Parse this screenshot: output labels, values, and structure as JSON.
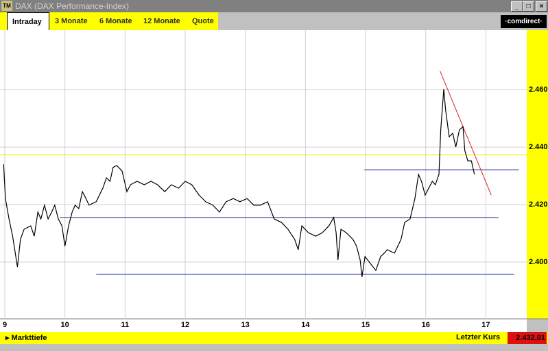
{
  "window": {
    "title": "DAX (DAX Performance-Index)"
  },
  "tabs": [
    "Intraday",
    "3 Monate",
    "6 Monate",
    "12 Monate",
    "Quote"
  ],
  "logo": "·comdirect·",
  "chart_data": {
    "type": "line",
    "x": [
      8.98,
      9.01,
      9.07,
      9.13,
      9.21,
      9.26,
      9.32,
      9.43,
      9.49,
      9.55,
      9.6,
      9.66,
      9.72,
      9.78,
      9.83,
      9.89,
      9.95,
      10.0,
      10.06,
      10.12,
      10.17,
      10.23,
      10.29,
      10.35,
      10.4,
      10.52,
      10.63,
      10.69,
      10.75,
      10.8,
      10.86,
      10.95,
      11.03,
      11.09,
      11.2,
      11.32,
      11.43,
      11.54,
      11.66,
      11.77,
      11.89,
      12.0,
      12.11,
      12.23,
      12.34,
      12.46,
      12.57,
      12.68,
      12.8,
      12.91,
      13.03,
      13.14,
      13.25,
      13.37,
      13.48,
      13.6,
      13.71,
      13.82,
      13.88,
      13.94,
      14.05,
      14.17,
      14.28,
      14.39,
      14.47,
      14.51,
      14.54,
      14.59,
      14.68,
      14.79,
      14.85,
      14.91,
      14.94,
      14.99,
      15.08,
      15.17,
      15.25,
      15.31,
      15.36,
      15.48,
      15.59,
      15.65,
      15.74,
      15.82,
      15.88,
      15.93,
      15.99,
      16.05,
      16.11,
      16.16,
      16.22,
      16.25,
      16.3,
      16.33,
      16.39,
      16.45,
      16.5,
      16.56,
      16.62,
      16.65,
      16.7,
      16.76,
      16.81
    ],
    "series": [
      {
        "color": "#000000",
        "values": [
          2434.0,
          2422.1,
          2415,
          2409,
          2398.3,
          2407.9,
          2411.4,
          2412.6,
          2409,
          2417.4,
          2415,
          2419.8,
          2415,
          2417.4,
          2419.8,
          2415,
          2412.6,
          2405.5,
          2412.6,
          2417.4,
          2419.8,
          2418.6,
          2424.5,
          2422.1,
          2419.8,
          2421,
          2425.7,
          2429.3,
          2428.1,
          2432.9,
          2433.6,
          2431.7,
          2424.5,
          2426.9,
          2428.1,
          2426.9,
          2428.1,
          2426.9,
          2424.5,
          2426.9,
          2425.7,
          2428.1,
          2426.9,
          2423.3,
          2421,
          2419.8,
          2417.4,
          2421,
          2422.1,
          2421,
          2422.1,
          2419.8,
          2419.8,
          2421,
          2415,
          2413.8,
          2411.4,
          2407.9,
          2404.3,
          2412.6,
          2410.2,
          2409,
          2410.2,
          2412.6,
          2415.5,
          2410.2,
          2400.7,
          2411.4,
          2410.2,
          2407.9,
          2405.5,
          2400.7,
          2394.8,
          2401.9,
          2399.5,
          2397.1,
          2401.9,
          2403.1,
          2404.3,
          2403.1,
          2407.9,
          2413.8,
          2415,
          2422.1,
          2430.5,
          2428.1,
          2423.3,
          2425.7,
          2428.1,
          2426.9,
          2430.5,
          2446,
          2460.2,
          2453.1,
          2443.6,
          2444.8,
          2440,
          2446,
          2447.1,
          2438.8,
          2435.2,
          2435.2,
          2430.5
        ]
      }
    ],
    "xlim": [
      8.92,
      17.68
    ],
    "xticks": [
      9,
      10,
      11,
      12,
      13,
      14,
      15,
      16,
      17
    ],
    "ylim": [
      2380,
      2480
    ],
    "yticks": [
      {
        "value": 2400,
        "label": "2.400"
      },
      {
        "value": 2420,
        "label": "2.420"
      },
      {
        "value": 2440,
        "label": "2.440"
      },
      {
        "value": 2460,
        "label": "2.460"
      }
    ],
    "grid": true,
    "lines": [
      {
        "x": [
          8.92,
          17.68
        ],
        "y": [
          2437.4,
          2437.4
        ],
        "color": "#f0f000"
      },
      {
        "x": [
          9.92,
          17.21
        ],
        "y": [
          2415.5,
          2415.5
        ],
        "color": "#1a2a9a"
      },
      {
        "x": [
          10.52,
          17.47
        ],
        "y": [
          2395.7,
          2395.7
        ],
        "color": "#1a2a9a"
      },
      {
        "x": [
          14.98,
          17.55
        ],
        "y": [
          2432.1,
          2432.1
        ],
        "color": "#1a2a9a"
      },
      {
        "x": [
          16.24,
          17.09
        ],
        "y": [
          2466.4,
          2423.3
        ],
        "color": "#e02020"
      }
    ]
  },
  "footer": {
    "link": "Markttiefe",
    "last_label": "Letzter Kurs",
    "last_value": "2.432,01"
  }
}
